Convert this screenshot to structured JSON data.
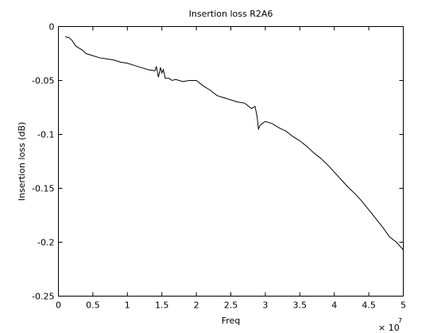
{
  "chart_data": {
    "type": "line",
    "title": "Insertion loss R2A6",
    "xlabel": "Freq",
    "ylabel": "Insertion loss (dB)",
    "x_multiplier": "× 10",
    "x_multiplier_exponent": "7",
    "xlim": [
      0,
      5
    ],
    "ylim": [
      -0.25,
      0
    ],
    "xticks": [
      0,
      0.5,
      1,
      1.5,
      2,
      2.5,
      3,
      3.5,
      4,
      4.5,
      5
    ],
    "xtick_labels": [
      "0",
      "0.5",
      "1",
      "1.5",
      "2",
      "2.5",
      "3",
      "3.5",
      "4",
      "4.5",
      "5"
    ],
    "yticks": [
      0,
      -0.05,
      -0.1,
      -0.15,
      -0.2,
      -0.25
    ],
    "ytick_labels": [
      "0",
      "-0.05",
      "-0.1",
      "-0.15",
      "-0.2",
      "-0.25"
    ],
    "grid": false,
    "line_color": "#000000",
    "series": [
      {
        "x": [
          0.1,
          0.12,
          0.15,
          0.2,
          0.25,
          0.3,
          0.35,
          0.4,
          0.5,
          0.6,
          0.7,
          0.8,
          0.9,
          1.0,
          1.1,
          1.2,
          1.3,
          1.4,
          1.42,
          1.45,
          1.48,
          1.5,
          1.52,
          1.55,
          1.6,
          1.65,
          1.7,
          1.8,
          1.9,
          2.0,
          2.1,
          2.2,
          2.3,
          2.4,
          2.5,
          2.6,
          2.7,
          2.8,
          2.85,
          2.88,
          2.9,
          2.92,
          2.95,
          3.0,
          3.1,
          3.2,
          3.3,
          3.4,
          3.5,
          3.6,
          3.7,
          3.8,
          3.9,
          4.0,
          4.1,
          4.2,
          4.3,
          4.4,
          4.5,
          4.6,
          4.7,
          4.8,
          4.9,
          5.0
        ],
        "y": [
          -0.009,
          -0.01,
          -0.01,
          -0.013,
          -0.018,
          -0.02,
          -0.022,
          -0.025,
          -0.027,
          -0.029,
          -0.03,
          -0.031,
          -0.033,
          -0.034,
          -0.036,
          -0.038,
          -0.04,
          -0.041,
          -0.037,
          -0.047,
          -0.038,
          -0.043,
          -0.04,
          -0.048,
          -0.048,
          -0.05,
          -0.049,
          -0.051,
          -0.05,
          -0.05,
          -0.055,
          -0.059,
          -0.064,
          -0.066,
          -0.068,
          -0.07,
          -0.071,
          -0.076,
          -0.074,
          -0.083,
          -0.095,
          -0.092,
          -0.09,
          -0.088,
          -0.09,
          -0.094,
          -0.097,
          -0.102,
          -0.106,
          -0.111,
          -0.117,
          -0.122,
          -0.128,
          -0.135,
          -0.142,
          -0.149,
          -0.155,
          -0.162,
          -0.17,
          -0.178,
          -0.186,
          -0.195,
          -0.2,
          -0.207
        ]
      }
    ]
  }
}
